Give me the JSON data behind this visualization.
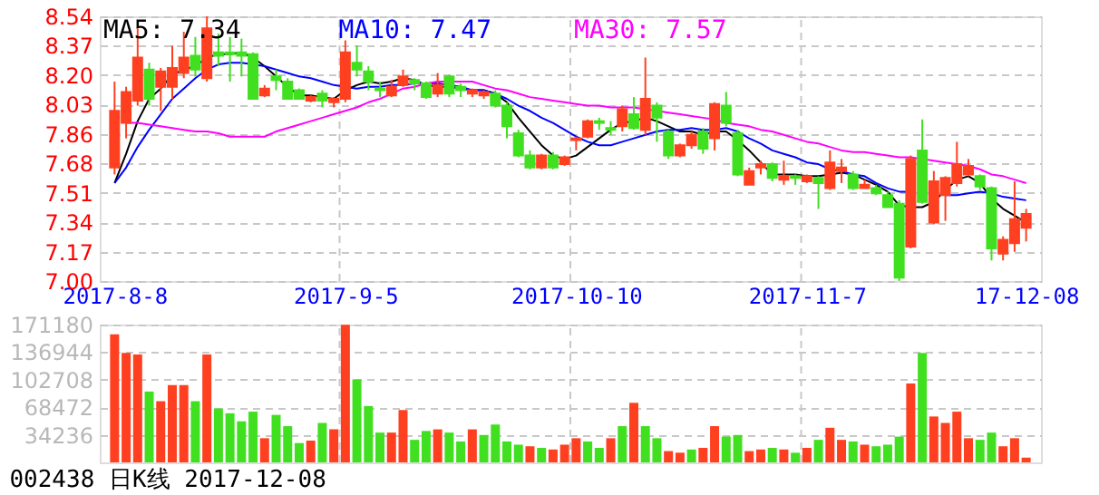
{
  "chart_data": [
    {
      "type": "candlestick",
      "legend": "top",
      "grid": true,
      "categories": [
        "2017-8-8",
        null,
        null,
        null,
        null,
        null,
        null,
        null,
        null,
        null,
        null,
        null,
        null,
        null,
        null,
        null,
        null,
        null,
        null,
        null,
        "2017-9-5",
        null,
        null,
        null,
        null,
        null,
        null,
        null,
        null,
        null,
        null,
        null,
        null,
        null,
        null,
        null,
        null,
        null,
        null,
        null,
        "2017-10-10",
        null,
        null,
        null,
        null,
        null,
        null,
        null,
        null,
        null,
        null,
        null,
        null,
        null,
        null,
        null,
        null,
        null,
        null,
        null,
        "2017-11-7",
        null,
        null,
        null,
        null,
        null,
        null,
        null,
        null,
        null,
        null,
        null,
        null,
        null,
        null,
        null,
        null,
        null,
        null,
        "17-12-08"
      ],
      "ohlc": [
        [
          7.66,
          8.16,
          7.62,
          7.99
        ],
        [
          7.92,
          8.13,
          7.83,
          8.1
        ],
        [
          8.05,
          8.47,
          8.02,
          8.3
        ],
        [
          8.23,
          8.27,
          8.02,
          8.06
        ],
        [
          8.13,
          8.24,
          7.99,
          8.22
        ],
        [
          8.13,
          8.37,
          8.06,
          8.24
        ],
        [
          8.21,
          8.45,
          8.18,
          8.3
        ],
        [
          8.31,
          8.42,
          8.19,
          8.23
        ],
        [
          8.18,
          8.54,
          8.16,
          8.47
        ],
        [
          8.33,
          8.44,
          8.25,
          8.31
        ],
        [
          8.33,
          8.42,
          8.16,
          8.32
        ],
        [
          8.33,
          8.41,
          8.19,
          8.31
        ],
        [
          8.32,
          8.33,
          8.06,
          8.06
        ],
        [
          8.08,
          8.14,
          8.07,
          8.12
        ],
        [
          8.19,
          8.23,
          8.11,
          8.17
        ],
        [
          8.16,
          8.18,
          8.06,
          8.06
        ],
        [
          8.11,
          8.12,
          8.06,
          8.06
        ],
        [
          8.05,
          8.08,
          8.04,
          8.07
        ],
        [
          8.09,
          8.11,
          8.01,
          8.05
        ],
        [
          8.04,
          8.07,
          8.01,
          8.06
        ],
        [
          8.06,
          8.4,
          8.04,
          8.33
        ],
        [
          8.27,
          8.37,
          8.19,
          8.23
        ],
        [
          8.22,
          8.25,
          8.11,
          8.16
        ],
        [
          8.12,
          8.16,
          8.07,
          8.11
        ],
        [
          8.08,
          8.17,
          8.07,
          8.13
        ],
        [
          8.14,
          8.23,
          8.13,
          8.19
        ],
        [
          8.17,
          8.18,
          8.11,
          8.15
        ],
        [
          8.15,
          8.16,
          8.06,
          8.07
        ],
        [
          8.09,
          8.21,
          8.07,
          8.14
        ],
        [
          8.19,
          8.2,
          8.07,
          8.09
        ],
        [
          8.13,
          8.15,
          8.07,
          8.11
        ],
        [
          8.09,
          8.12,
          8.07,
          8.11
        ],
        [
          8.08,
          8.11,
          8.06,
          8.1
        ],
        [
          8.09,
          8.11,
          8.01,
          8.02
        ],
        [
          8.02,
          8.04,
          7.83,
          7.9
        ],
        [
          7.86,
          7.88,
          7.72,
          7.73
        ],
        [
          7.73,
          7.76,
          7.65,
          7.66
        ],
        [
          7.66,
          7.74,
          7.65,
          7.73
        ],
        [
          7.73,
          7.75,
          7.65,
          7.66
        ],
        [
          7.68,
          7.73,
          7.67,
          7.72
        ],
        [
          7.82,
          7.84,
          7.76,
          7.83
        ],
        [
          7.84,
          7.94,
          7.83,
          7.93
        ],
        [
          7.93,
          7.95,
          7.88,
          7.92
        ],
        [
          7.89,
          7.93,
          7.85,
          7.88
        ],
        [
          7.9,
          8.02,
          7.87,
          8.0
        ],
        [
          7.97,
          8.07,
          7.88,
          7.89
        ],
        [
          7.88,
          8.3,
          7.85,
          8.06
        ],
        [
          8.02,
          8.04,
          7.81,
          7.95
        ],
        [
          7.87,
          7.88,
          7.71,
          7.73
        ],
        [
          7.73,
          7.8,
          7.72,
          7.79
        ],
        [
          7.79,
          7.87,
          7.77,
          7.85
        ],
        [
          7.87,
          7.89,
          7.74,
          7.77
        ],
        [
          7.83,
          8.04,
          7.76,
          8.03
        ],
        [
          8.02,
          8.1,
          7.9,
          7.92
        ],
        [
          7.86,
          7.88,
          7.61,
          7.62
        ],
        [
          7.56,
          7.66,
          7.56,
          7.64
        ],
        [
          7.66,
          7.7,
          7.62,
          7.68
        ],
        [
          7.68,
          7.69,
          7.58,
          7.6
        ],
        [
          7.59,
          7.7,
          7.56,
          7.61
        ],
        [
          7.61,
          7.62,
          7.56,
          7.6
        ],
        [
          7.58,
          7.62,
          7.57,
          7.61
        ],
        [
          7.6,
          7.61,
          7.42,
          7.57
        ],
        [
          7.54,
          7.76,
          7.53,
          7.69
        ],
        [
          7.64,
          7.71,
          7.57,
          7.66
        ],
        [
          7.62,
          7.64,
          7.53,
          7.54
        ],
        [
          7.54,
          7.59,
          7.54,
          7.56
        ],
        [
          7.54,
          7.56,
          7.5,
          7.51
        ],
        [
          7.5,
          7.52,
          7.43,
          7.43
        ],
        [
          7.45,
          7.47,
          7.0,
          7.02
        ],
        [
          7.2,
          7.73,
          7.19,
          7.71
        ],
        [
          7.76,
          7.94,
          7.45,
          7.46
        ],
        [
          7.34,
          7.64,
          7.33,
          7.58
        ],
        [
          7.5,
          7.61,
          7.35,
          7.6
        ],
        [
          7.57,
          7.81,
          7.55,
          7.68
        ],
        [
          7.62,
          7.71,
          7.61,
          7.67
        ],
        [
          7.61,
          7.62,
          7.53,
          7.55
        ],
        [
          7.54,
          7.55,
          7.12,
          7.19
        ],
        [
          7.16,
          7.26,
          7.12,
          7.24
        ],
        [
          7.22,
          7.58,
          7.17,
          7.36
        ],
        [
          7.31,
          7.42,
          7.23,
          7.39
        ]
      ],
      "colors": [
        "#ff4020",
        "#ff4020",
        "#ff4020",
        "#40e020",
        "#ff4020",
        "#ff4020",
        "#ff4020",
        "#40e020",
        "#ff4020",
        "#40e020",
        "#40e020",
        "#40e020",
        "#40e020",
        "#ff4020",
        "#40e020",
        "#40e020",
        "#40e020",
        "#ff4020",
        "#40e020",
        "#ff4020",
        "#ff4020",
        "#40e020",
        "#40e020",
        "#40e020",
        "#ff4020",
        "#ff4020",
        "#40e020",
        "#40e020",
        "#ff4020",
        "#40e020",
        "#40e020",
        "#ff4020",
        "#ff4020",
        "#40e020",
        "#40e020",
        "#40e020",
        "#40e020",
        "#ff4020",
        "#40e020",
        "#ff4020",
        "#ff4020",
        "#ff4020",
        "#40e020",
        "#40e020",
        "#ff4020",
        "#40e020",
        "#ff4020",
        "#40e020",
        "#40e020",
        "#ff4020",
        "#ff4020",
        "#40e020",
        "#ff4020",
        "#40e020",
        "#40e020",
        "#ff4020",
        "#ff4020",
        "#40e020",
        "#ff4020",
        "#40e020",
        "#ff4020",
        "#40e020",
        "#ff4020",
        "#ff4020",
        "#40e020",
        "#ff4020",
        "#40e020",
        "#40e020",
        "#40e020",
        "#ff4020",
        "#40e020",
        "#ff4020",
        "#ff4020",
        "#ff4020",
        "#ff4020",
        "#40e020",
        "#40e020",
        "#ff4020",
        "#ff4020",
        "#ff4020"
      ],
      "series": [
        {
          "type": "line",
          "name": "MA5: 7.34",
          "color": "#000000",
          "values": [
            7.57,
            7.74,
            7.93,
            8.06,
            8.12,
            8.2,
            8.23,
            8.25,
            8.3,
            8.32,
            8.32,
            8.33,
            8.3,
            8.25,
            8.19,
            8.13,
            8.08,
            8.08,
            8.07,
            8.06,
            8.11,
            8.14,
            8.16,
            8.15,
            8.16,
            8.18,
            8.17,
            8.14,
            8.13,
            8.13,
            8.12,
            8.11,
            8.11,
            8.09,
            8.04,
            7.95,
            7.87,
            7.79,
            7.73,
            7.71,
            7.73,
            7.78,
            7.83,
            7.88,
            7.92,
            7.93,
            7.95,
            7.93,
            7.9,
            7.87,
            7.87,
            7.85,
            7.87,
            7.87,
            7.82,
            7.76,
            7.69,
            7.62,
            7.62,
            7.62,
            7.61,
            7.61,
            7.62,
            7.63,
            7.62,
            7.59,
            7.56,
            7.52,
            7.44,
            7.43,
            7.43,
            7.46,
            7.53,
            7.59,
            7.61,
            7.57,
            7.48,
            7.42,
            7.38,
            7.34
          ]
        },
        {
          "type": "line",
          "name": "MA10: 7.47",
          "color": "#0000ff",
          "values": [
            7.57,
            7.66,
            7.78,
            7.88,
            7.97,
            8.06,
            8.12,
            8.18,
            8.23,
            8.26,
            8.27,
            8.27,
            8.26,
            8.25,
            8.23,
            8.21,
            8.19,
            8.18,
            8.16,
            8.14,
            8.13,
            8.12,
            8.13,
            8.13,
            8.14,
            8.14,
            8.15,
            8.15,
            8.15,
            8.14,
            8.13,
            8.11,
            8.11,
            8.09,
            8.06,
            8.02,
            7.99,
            7.95,
            7.92,
            7.88,
            7.84,
            7.81,
            7.79,
            7.79,
            7.81,
            7.83,
            7.85,
            7.87,
            7.88,
            7.88,
            7.89,
            7.88,
            7.88,
            7.89,
            7.87,
            7.83,
            7.8,
            7.76,
            7.74,
            7.72,
            7.69,
            7.68,
            7.65,
            7.64,
            7.62,
            7.61,
            7.57,
            7.54,
            7.52,
            7.52,
            null,
            null,
            7.5,
            7.5,
            7.51,
            7.52,
            7.51,
            7.49,
            7.48,
            7.47
          ]
        },
        {
          "type": "line",
          "name": "MA30: 7.57",
          "color": "#ff00ff",
          "values": [
            null,
            7.92,
            7.92,
            7.91,
            7.9,
            7.89,
            7.88,
            7.87,
            7.87,
            7.86,
            7.84,
            7.84,
            7.84,
            7.84,
            7.87,
            7.89,
            7.91,
            7.93,
            7.95,
            7.97,
            7.99,
            8.01,
            8.04,
            8.06,
            8.09,
            8.12,
            8.13,
            8.15,
            8.16,
            8.16,
            8.16,
            8.16,
            8.14,
            8.12,
            8.11,
            8.09,
            8.07,
            8.06,
            8.05,
            8.04,
            8.03,
            8.02,
            8.02,
            8.01,
            8.01,
            8.01,
            8.0,
            7.99,
            7.98,
            7.97,
            7.96,
            7.95,
            7.94,
            7.92,
            7.91,
            7.9,
            7.88,
            7.87,
            7.85,
            7.83,
            7.81,
            7.8,
            7.78,
            7.76,
            7.75,
            7.75,
            7.74,
            7.73,
            7.72,
            7.72,
            7.71,
            7.7,
            7.69,
            7.68,
            7.67,
            7.65,
            7.62,
            7.61,
            7.59,
            7.57
          ]
        }
      ],
      "ylim": [
        7.0,
        8.54
      ],
      "yticks": [
        {
          "value": 7.0,
          "label": "7.00"
        },
        {
          "value": 7.1711,
          "label": "7.17"
        },
        {
          "value": 7.3422,
          "label": "7.34"
        },
        {
          "value": 7.5133,
          "label": "7.51"
        },
        {
          "value": 7.6844,
          "label": "7.68"
        },
        {
          "value": 7.8556,
          "label": "7.86"
        },
        {
          "value": 8.0267,
          "label": "8.03"
        },
        {
          "value": 8.1978,
          "label": "8.20"
        },
        {
          "value": 8.3689,
          "label": "8.37"
        },
        {
          "value": 8.54,
          "label": "8.54"
        }
      ]
    },
    {
      "type": "bar",
      "grid": true,
      "tick_labels": "y",
      "categories": [
        null,
        null,
        null,
        null,
        null,
        null,
        null,
        null,
        null,
        null,
        null,
        null,
        null,
        null,
        null,
        null,
        null,
        null,
        null,
        null,
        null,
        null,
        null,
        null,
        null,
        null,
        null,
        null,
        null,
        null,
        null,
        null,
        null,
        null,
        null,
        null,
        null,
        null,
        null,
        null,
        null,
        null,
        null,
        null,
        null,
        null,
        null,
        null,
        null,
        null,
        null,
        null,
        null,
        null,
        null,
        null,
        null,
        null,
        null,
        null,
        null,
        null,
        null,
        null,
        null,
        null,
        null,
        null,
        null,
        null,
        null,
        null,
        null,
        null,
        null,
        null,
        null,
        null,
        null,
        null
      ],
      "values": [
        159000,
        136000,
        134000,
        88000,
        76000,
        96000,
        96000,
        76000,
        134000,
        67000,
        61000,
        51000,
        63000,
        30000,
        59000,
        45000,
        24000,
        27000,
        49000,
        41000,
        171000,
        103000,
        70000,
        37000,
        37000,
        65000,
        28000,
        39000,
        41000,
        37000,
        26000,
        41000,
        34000,
        47000,
        26000,
        22000,
        20000,
        18000,
        16000,
        22000,
        30000,
        26000,
        18000,
        30000,
        45000,
        74000,
        45000,
        30000,
        14000,
        12000,
        16000,
        18000,
        45000,
        32000,
        34000,
        14000,
        16000,
        18000,
        16000,
        12000,
        18000,
        28000,
        43000,
        28000,
        26000,
        22000,
        20000,
        22000,
        32000,
        98000,
        136000,
        57000,
        49000,
        63000,
        30000,
        28000,
        37000,
        20000,
        30000,
        6000
      ],
      "colors": [
        "#ff4020",
        "#ff4020",
        "#ff4020",
        "#40e020",
        "#ff4020",
        "#ff4020",
        "#ff4020",
        "#40e020",
        "#ff4020",
        "#40e020",
        "#40e020",
        "#40e020",
        "#40e020",
        "#ff4020",
        "#40e020",
        "#40e020",
        "#40e020",
        "#ff4020",
        "#40e020",
        "#ff4020",
        "#ff4020",
        "#40e020",
        "#40e020",
        "#40e020",
        "#ff4020",
        "#ff4020",
        "#40e020",
        "#40e020",
        "#ff4020",
        "#40e020",
        "#40e020",
        "#ff4020",
        "#40e020",
        "#40e020",
        "#40e020",
        "#40e020",
        "#ff4020",
        "#40e020",
        "#ff4020",
        "#ff4020",
        "#ff4020",
        "#40e020",
        "#40e020",
        "#ff4020",
        "#40e020",
        "#ff4020",
        "#40e020",
        "#40e020",
        "#ff4020",
        "#ff4020",
        "#40e020",
        "#ff4020",
        "#ff4020",
        "#40e020",
        "#40e020",
        "#ff4020",
        "#ff4020",
        "#40e020",
        "#ff4020",
        "#40e020",
        "#ff4020",
        "#40e020",
        "#ff4020",
        "#ff4020",
        "#40e020",
        "#ff4020",
        "#40e020",
        "#40e020",
        "#40e020",
        "#ff4020",
        "#40e020",
        "#ff4020",
        "#ff4020",
        "#ff4020",
        "#ff4020",
        "#40e020",
        "#40e020",
        "#ff4020",
        "#ff4020",
        "#ff4020"
      ],
      "ylim": [
        0,
        171180
      ],
      "yticks": [
        34236,
        68472,
        102708,
        136944,
        171180
      ],
      "annotations": [
        "002438 日K线 2017-12-08"
      ]
    }
  ]
}
